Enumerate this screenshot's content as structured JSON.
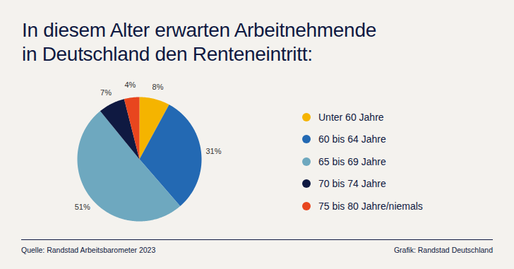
{
  "chart_data": {
    "type": "pie",
    "title": "In diesem Alter erwarten Arbeitnehmende in Deutschland den Renteneintritt:",
    "categories": [
      "Unter 60 Jahre",
      "60 bis 64 Jahre",
      "65 bis 69 Jahre",
      "70 bis 74 Jahre",
      "75 bis 80 Jahre/niemals"
    ],
    "values": [
      8,
      31,
      51,
      7,
      4
    ],
    "value_labels": [
      "8%",
      "31%",
      "51%",
      "7%",
      "4%"
    ],
    "colors": [
      "#f5b400",
      "#2369b3",
      "#6ea8bf",
      "#0f1941",
      "#e8461e"
    ],
    "data_labels": true,
    "legend": "right",
    "source": "Quelle: Randstad Arbeitsbarometer 2023",
    "credit": "Grafik: Randstad Deutschland"
  }
}
